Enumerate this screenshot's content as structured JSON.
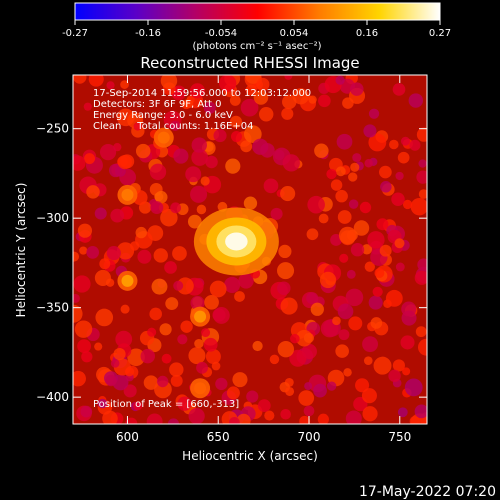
{
  "chart_data": {
    "type": "heatmap",
    "title": "Reconstructed RHESSI Image",
    "xlabel": "Heliocentric X (arcsec)",
    "ylabel": "Heliocentric Y (arcsec)",
    "xlim": [
      570,
      765
    ],
    "ylim": [
      -415,
      -220
    ],
    "xticks": [
      600,
      650,
      700,
      750
    ],
    "yticks": [
      -250,
      -300,
      -350,
      -400
    ],
    "colorbar": {
      "label": "(photons cm⁻² s⁻¹ asec⁻²)",
      "range": [
        -0.27,
        0.27
      ],
      "ticks": [
        "-0.27",
        "-0.16",
        "-0.054",
        "0.054",
        "0.16",
        "0.27"
      ],
      "colormap": [
        "#0000ff",
        "#5a00c8",
        "#b40064",
        "#ff0000",
        "#ff7a00",
        "#ffd400",
        "#ffffff"
      ]
    },
    "annotations": [
      "17-Sep-2014 11:59:56.000 to 12:03:12.000",
      "Detectors: 3F 6F 9F, Att 0",
      "Energy Range: 3.0 - 6.0 keV",
      "Clean     Total counts: 1.16E+04"
    ],
    "peak_label": "Position of Peak = [660,-313]",
    "peak": {
      "x": 660,
      "y": -313,
      "value": 0.27
    },
    "sources": [
      {
        "x": 660,
        "y": -313,
        "value": 0.27
      },
      {
        "x": 600,
        "y": -335,
        "value": 0.13
      },
      {
        "x": 640,
        "y": -355,
        "value": 0.12
      },
      {
        "x": 600,
        "y": -287,
        "value": 0.09
      },
      {
        "x": 620,
        "y": -255,
        "value": 0.08
      },
      {
        "x": 640,
        "y": -395,
        "value": 0.07
      }
    ],
    "grid": false
  },
  "footer": {
    "date": "17-May-2022 07:20"
  }
}
